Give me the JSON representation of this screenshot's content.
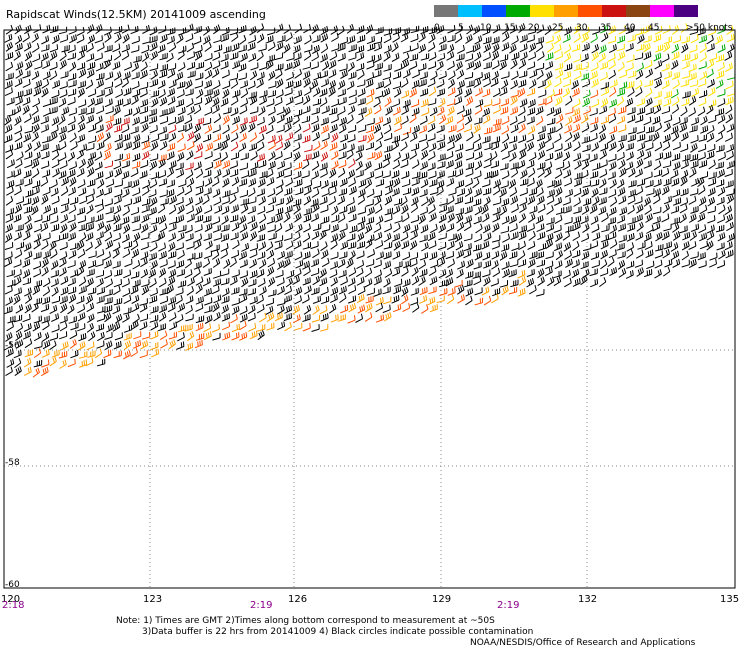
{
  "title": "Rapidscat Winds(12.5KM) 20141009 ascending",
  "legend": {
    "unit_label": ">50 knots",
    "labels": [
      "0",
      "5",
      "10",
      "15",
      "20",
      "25",
      "30",
      "35",
      "40",
      "45"
    ],
    "colors": [
      "#777777",
      "#00bfff",
      "#0050ff",
      "#00aa00",
      "#ffe000",
      "#ffa000",
      "#ff5000",
      "#cc1111",
      "#8b4513",
      "#ff00ff",
      "#4b0082"
    ]
  },
  "latitude_labels": [
    "-56",
    "-58",
    "-60"
  ],
  "longitude_labels": [
    "120",
    "123",
    "126",
    "129",
    "132",
    "135"
  ],
  "time_labels": [
    "2:18",
    "2:19",
    "2:19"
  ],
  "notes": [
    "Note: 1) Times are GMT 2)Times along bottom correspond to measurement at ~50S",
    "3)Data buffer is 22 hrs from 20141009 4) Black circles indicate possible contamination",
    "NOAA/NESDIS/Office of Research and Applications"
  ],
  "map_colors": {
    "grid": "#888888",
    "border": "#000000",
    "barb_default": "#000000"
  }
}
